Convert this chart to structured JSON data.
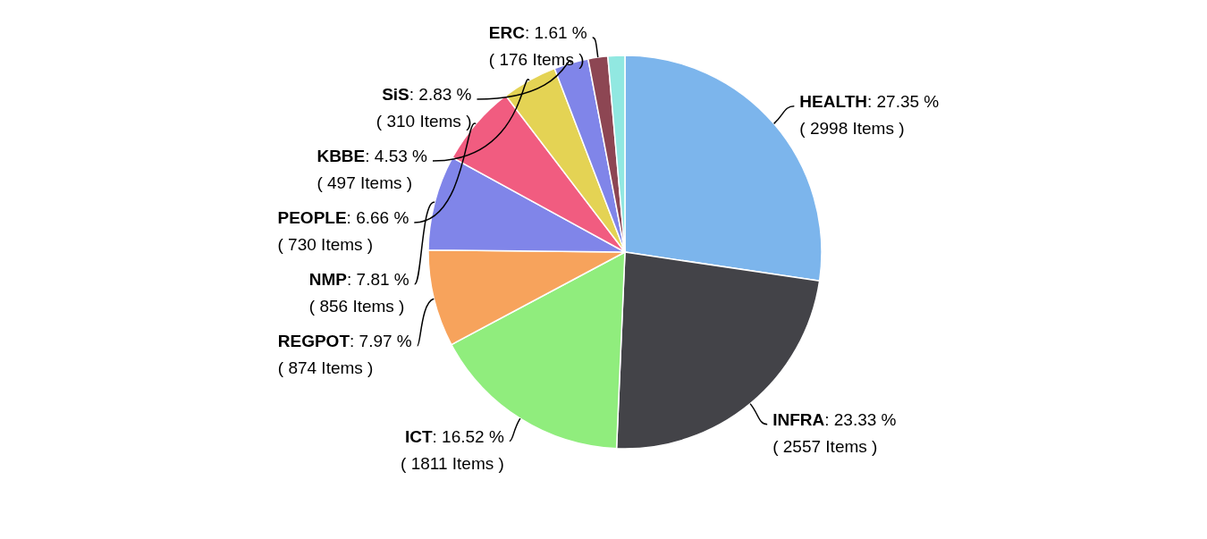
{
  "chart_data": {
    "type": "pie",
    "categories": [
      "HEALTH",
      "INFRA",
      "ICT",
      "REGPOT",
      "NMP",
      "PEOPLE",
      "KBBE",
      "SiS",
      "ERC",
      null
    ],
    "values": [
      27.35,
      23.33,
      16.52,
      7.97,
      7.81,
      6.66,
      4.53,
      2.83,
      1.61,
      1.39
    ],
    "colors": [
      "#7cb5ec",
      "#434348",
      "#90ed7d",
      "#f7a35c",
      "#8085e9",
      "#f15c80",
      "#e4d354",
      "#8085e9",
      "#8d4653",
      "#91e8e1"
    ],
    "value_labels": [
      ": 27.35 %\n( 2998 Items )",
      ": 23.33 %\n( 2557 Items )",
      ": 16.52 %\n( 1811 Items )",
      ": 7.97 %\n( 874 Items )",
      ": 7.81 %\n( 856 Items )",
      ": 6.66 %\n( 730 Items )",
      ": 4.53 %\n( 497 Items )",
      ": 2.83 %\n( 310 Items )",
      ": 1.61 %\n( 176 Items )",
      null
    ],
    "legend": false
  }
}
